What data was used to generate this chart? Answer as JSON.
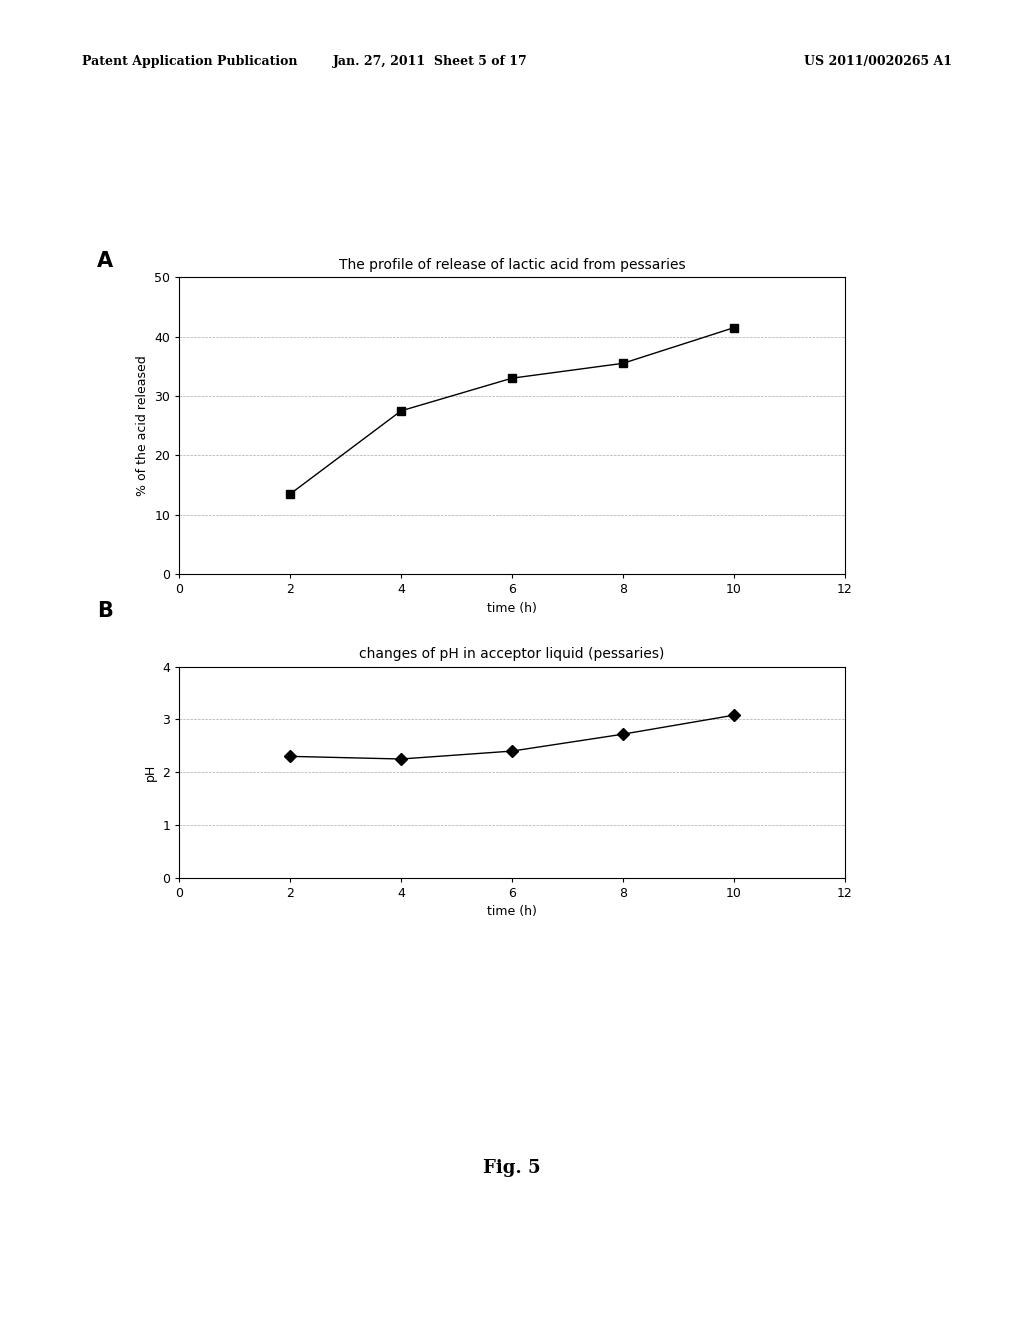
{
  "title_A": "The profile of release of lactic acid from pessaries",
  "title_B": "changes of pH in acceptor liquid (pessaries)",
  "label_A": "A",
  "label_B": "B",
  "xlabel": "time (h)",
  "ylabel_A": "% of the acid released",
  "ylabel_B": "pH",
  "x_A": [
    2,
    4,
    6,
    8,
    10
  ],
  "y_A": [
    13.5,
    27.5,
    33.0,
    35.5,
    41.5
  ],
  "x_B": [
    2,
    4,
    6,
    8,
    10
  ],
  "y_B": [
    2.3,
    2.25,
    2.4,
    2.72,
    3.08
  ],
  "xlim": [
    0,
    12
  ],
  "ylim_A": [
    0,
    50
  ],
  "ylim_B": [
    0,
    4
  ],
  "xticks": [
    0,
    2,
    4,
    6,
    8,
    10,
    12
  ],
  "yticks_A": [
    0,
    10,
    20,
    30,
    40,
    50
  ],
  "yticks_B": [
    0,
    1,
    2,
    3,
    4
  ],
  "marker_A": "s",
  "marker_B": "D",
  "marker_size_A": 6,
  "marker_size_B": 6,
  "line_color": "#000000",
  "marker_color": "#000000",
  "background_color": "#ffffff",
  "grid_color": "#aaaaaa",
  "header_left": "Patent Application Publication",
  "header_mid": "Jan. 27, 2011  Sheet 5 of 17",
  "header_right": "US 2011/0020265 A1",
  "fig_label": "Fig. 5",
  "font_size_title": 10,
  "font_size_axis_label": 9,
  "font_size_tick": 9,
  "font_size_header": 9,
  "font_size_fig_label": 13
}
